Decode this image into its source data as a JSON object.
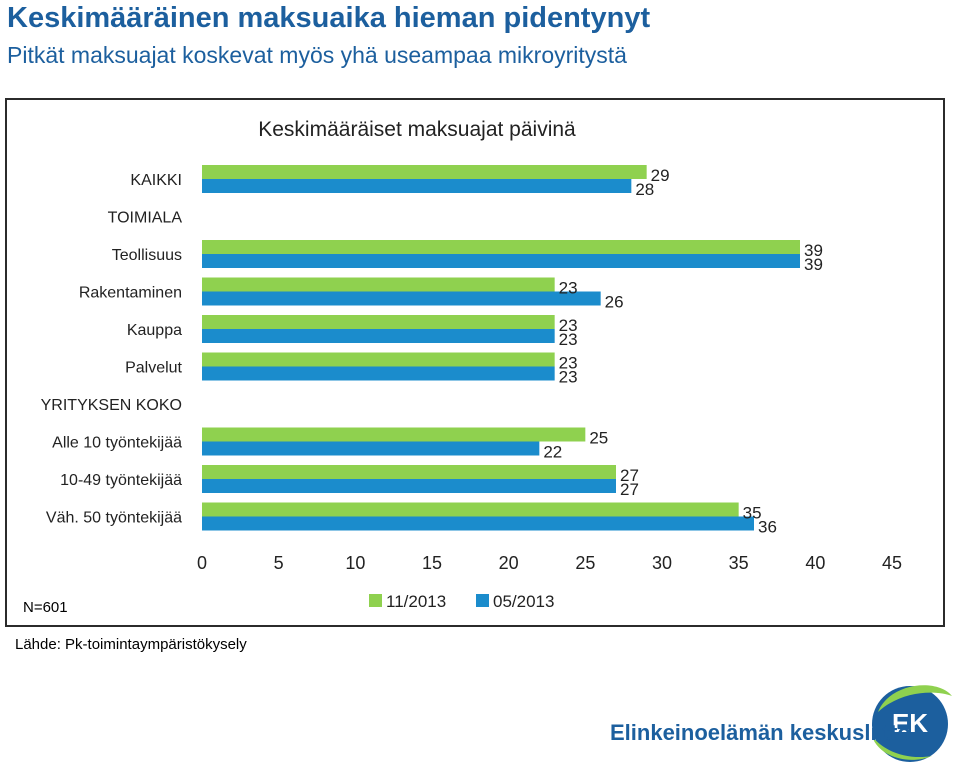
{
  "header": {
    "title": "Keskimääräinen maksuaika hieman pidentynyt",
    "subtitle": "Pitkät maksuajat koskevat myös yhä useampaa mikroyritystä"
  },
  "note": "N=601",
  "source": "Lähde: Pk-toimintaympäristökysely",
  "logo": {
    "text": "Elinkeinoelämän keskusliitto",
    "mark": "EK"
  },
  "colors": {
    "series_1": "#8fd14f",
    "series_2": "#1b8ccc",
    "title": "#1c5f9e"
  },
  "chart_data": {
    "type": "bar",
    "orientation": "horizontal",
    "title": "Keskimääräiset maksuajat päivinä",
    "categories": [
      "KAIKKI",
      "TOIMIALA",
      "Teollisuus",
      "Rakentaminen",
      "Kauppa",
      "Palvelut",
      "YRITYKSEN KOKO",
      "Alle 10 työntekijää",
      "10-49 työntekijää",
      "Väh. 50 työntekijää"
    ],
    "series": [
      {
        "name": "11/2013",
        "values": [
          29,
          null,
          39,
          23,
          23,
          23,
          null,
          25,
          27,
          35
        ]
      },
      {
        "name": "05/2013",
        "values": [
          28,
          null,
          39,
          26,
          23,
          23,
          null,
          22,
          27,
          36
        ]
      }
    ],
    "xlim": [
      0,
      45
    ],
    "xticks": [
      "0",
      "5",
      "10",
      "15",
      "20",
      "25",
      "30",
      "35",
      "40",
      "45"
    ],
    "legend": "bottom",
    "grid": false
  }
}
